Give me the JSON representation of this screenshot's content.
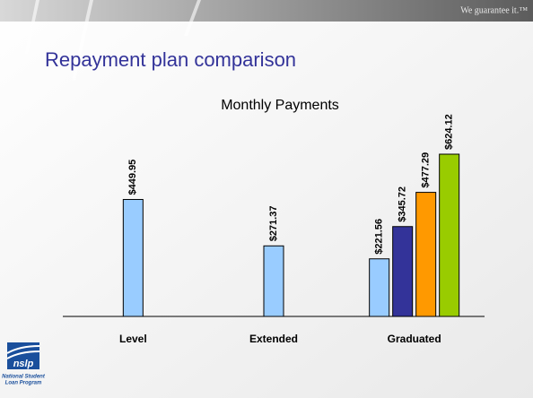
{
  "slogan": "We guarantee it.™",
  "logo": {
    "mark": "nslp",
    "name_lines": [
      "National Student",
      "Loan Program"
    ]
  },
  "chart_data": {
    "type": "bar",
    "page_title": "Repayment plan comparison",
    "title": "Monthly Payments",
    "categories": [
      "Level",
      "Extended",
      "Graduated"
    ],
    "ylim": [
      0,
      700
    ],
    "series": [
      {
        "color": "#99ccff",
        "values": [
          449.95,
          271.37,
          221.56
        ],
        "value_labels": [
          "$449.95",
          "$271.37",
          "$221.56"
        ]
      },
      {
        "color": "#333399",
        "values": [
          null,
          null,
          345.72
        ],
        "value_labels": [
          null,
          null,
          "$345.72"
        ]
      },
      {
        "color": "#ff9900",
        "values": [
          null,
          null,
          477.29
        ],
        "value_labels": [
          null,
          null,
          "$477.29"
        ]
      },
      {
        "color": "#99cc00",
        "values": [
          null,
          null,
          624.12
        ],
        "value_labels": [
          null,
          null,
          "$624.12"
        ]
      }
    ]
  }
}
